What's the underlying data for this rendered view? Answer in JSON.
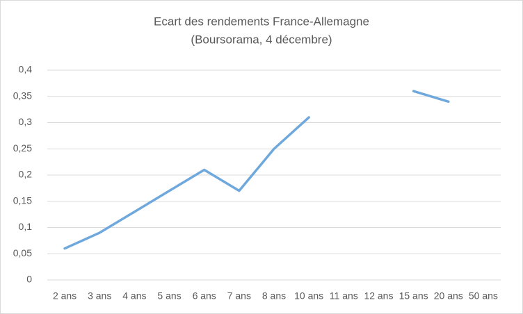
{
  "chart_data": {
    "type": "line",
    "title": "Ecart des rendements France-Allemagne",
    "subtitle": "(Boursorama, 4 décembre)",
    "categories": [
      "2 ans",
      "3 ans",
      "4 ans",
      "5 ans",
      "6 ans",
      "7 ans",
      "8 ans",
      "10 ans",
      "11 ans",
      "12 ans",
      "15 ans",
      "20 ans",
      "50 ans"
    ],
    "values": [
      0.06,
      0.09,
      0.13,
      0.17,
      0.21,
      0.17,
      0.25,
      0.31,
      null,
      null,
      0.36,
      0.34,
      null
    ],
    "color": "#6fa8dc",
    "ylim": [
      0,
      0.4
    ],
    "yticks": [
      0,
      {
        "value": 0.05,
        "label": "0,05"
      },
      {
        "value": 0.1,
        "label": "0,1"
      },
      {
        "value": 0.15,
        "label": "0,15"
      },
      {
        "value": 0.2,
        "label": "0,2"
      },
      {
        "value": 0.25,
        "label": "0,25"
      },
      {
        "value": 0.3,
        "label": "0,3"
      },
      {
        "value": 0.35,
        "label": "0,35"
      },
      {
        "value": 0.4,
        "label": "0,4"
      }
    ],
    "grid": true
  }
}
